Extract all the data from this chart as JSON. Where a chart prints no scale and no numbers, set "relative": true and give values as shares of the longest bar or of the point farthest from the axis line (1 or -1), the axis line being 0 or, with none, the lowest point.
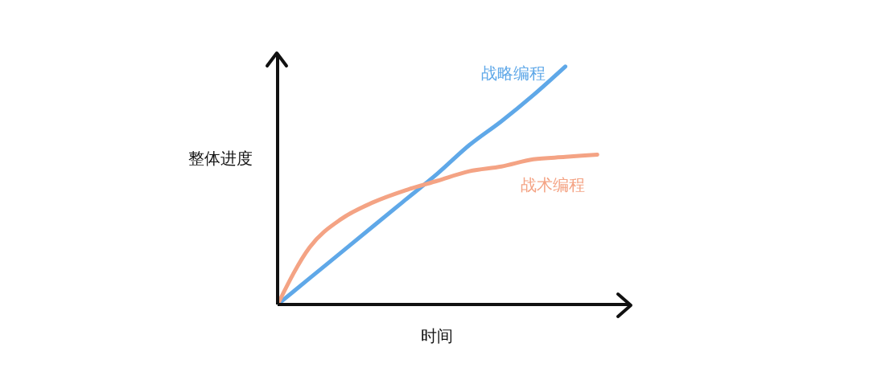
{
  "chart_data": {
    "type": "line",
    "relative": true,
    "xlabel": "时间",
    "ylabel": "整体进度",
    "categories": [
      null,
      null,
      null,
      null,
      null,
      null,
      null,
      null,
      null,
      null,
      null
    ],
    "series": [
      {
        "name": "战略编程",
        "color": "#5fa8e8",
        "values": [
          0,
          0.11,
          0.22,
          0.33,
          0.44,
          0.55,
          0.67,
          0.77,
          0.88,
          1,
          null
        ]
      },
      {
        "name": "战术编程",
        "color": "#f4a384",
        "values": [
          0,
          0.24,
          0.36,
          0.43,
          0.48,
          0.52,
          0.56,
          0.58,
          0.61,
          0.62,
          0.63
        ]
      }
    ],
    "grid": false,
    "legend": false,
    "marker": "none",
    "line_style": "solid"
  }
}
